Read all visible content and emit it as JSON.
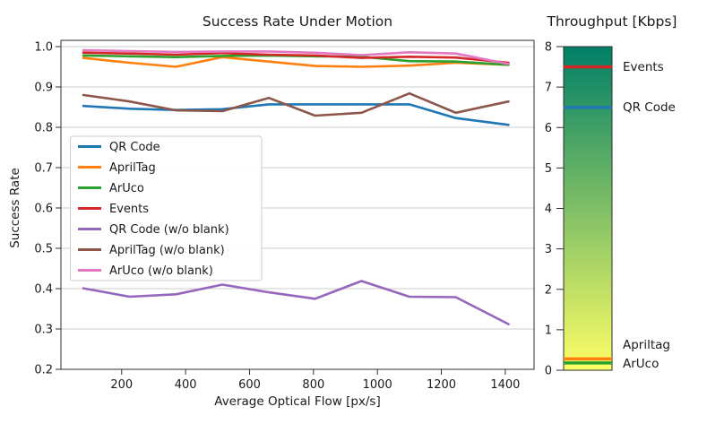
{
  "chart_data": {
    "type": "line",
    "title": "Success Rate Under Motion",
    "xlabel": "Average Optical Flow [px/s]",
    "ylabel": "Success Rate",
    "xlim": [
      10,
      1490
    ],
    "ylim": [
      0.2,
      1.0156
    ],
    "x_ticks": [
      200,
      400,
      600,
      800,
      1000,
      1200,
      1400
    ],
    "y_ticks": [
      0.2,
      0.3,
      0.4,
      0.5,
      0.6,
      0.7,
      0.8,
      0.9,
      1.0
    ],
    "grid": "horizontal-only",
    "grid_color": "#cccccc",
    "legend_position": "center-left",
    "x": [
      80,
      225,
      370,
      515,
      660,
      805,
      950,
      1100,
      1245,
      1410
    ],
    "series": [
      {
        "name": "QR Code",
        "color": "#1f77b4",
        "values": [
          0.853,
          0.846,
          0.843,
          0.845,
          0.857,
          0.857,
          0.857,
          0.857,
          0.823,
          0.806
        ]
      },
      {
        "name": "AprilTag",
        "color": "#ff7f0e",
        "values": [
          0.972,
          0.96,
          0.95,
          0.974,
          0.963,
          0.952,
          0.95,
          0.953,
          0.96,
          0.955
        ]
      },
      {
        "name": "ArUco",
        "color": "#2ca02c",
        "values": [
          0.978,
          0.976,
          0.974,
          0.977,
          0.978,
          0.976,
          0.975,
          0.964,
          0.963,
          0.955
        ]
      },
      {
        "name": "Events",
        "color": "#d62728",
        "values": [
          0.985,
          0.983,
          0.98,
          0.984,
          0.98,
          0.978,
          0.972,
          0.975,
          0.973,
          0.96
        ]
      },
      {
        "name": "QR Code (w/o blank)",
        "color": "#9467bd",
        "values": [
          0.401,
          0.38,
          0.386,
          0.41,
          0.391,
          0.375,
          0.419,
          0.38,
          0.379,
          0.312
        ]
      },
      {
        "name": "AprilTag (w/o blank)",
        "color": "#8c564b",
        "values": [
          0.88,
          0.864,
          0.842,
          0.84,
          0.873,
          0.829,
          0.836,
          0.884,
          0.836,
          0.864
        ]
      },
      {
        "name": "ArUco (w/o blank)",
        "color": "#e377c2",
        "values": [
          0.991,
          0.989,
          0.987,
          0.988,
          0.988,
          0.985,
          0.979,
          0.986,
          0.983,
          0.957
        ]
      }
    ]
  },
  "colorbar": {
    "title": "Throughput [Kbps]",
    "min": 0,
    "max": 8,
    "ticks": [
      0,
      1,
      2,
      3,
      4,
      5,
      6,
      7,
      8
    ],
    "gradient": {
      "top": "#007f66",
      "mid": "#7fbf66",
      "bottom": "#ffff66"
    },
    "markers": [
      {
        "label": "Events",
        "value": 7.5,
        "color": "#d62728"
      },
      {
        "label": "QR Code",
        "value": 6.5,
        "color": "#1f77b4"
      },
      {
        "label": "Apriltag",
        "value": 0.28,
        "color": "#ff7f0e"
      },
      {
        "label": "ArUco",
        "value": 0.18,
        "color": "#2ca02c"
      }
    ]
  }
}
